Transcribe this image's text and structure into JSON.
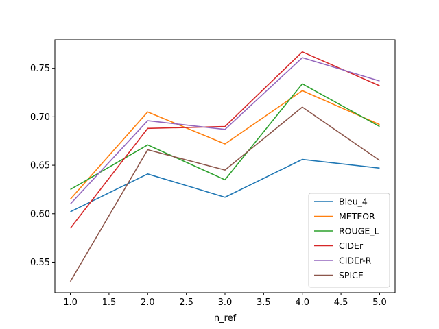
{
  "chart_data": {
    "type": "line",
    "title": "",
    "xlabel": "n_ref",
    "ylabel": "",
    "x": [
      1.0,
      2.0,
      3.0,
      4.0,
      5.0
    ],
    "xlim": [
      0.8,
      5.2
    ],
    "ylim": [
      0.5185,
      0.7795
    ],
    "xticks": [
      "1.0",
      "1.5",
      "2.0",
      "2.5",
      "3.0",
      "3.5",
      "4.0",
      "4.5",
      "5.0"
    ],
    "yticks": [
      "0.55",
      "0.60",
      "0.65",
      "0.70",
      "0.75"
    ],
    "grid": false,
    "legend_position": "lower-right",
    "series": [
      {
        "name": "Bleu_4",
        "color": "#1f77b4",
        "values": [
          0.602,
          0.641,
          0.617,
          0.656,
          0.647
        ]
      },
      {
        "name": "METEOR",
        "color": "#ff7f0e",
        "values": [
          0.615,
          0.705,
          0.672,
          0.727,
          0.692
        ]
      },
      {
        "name": "ROUGE_L",
        "color": "#2ca02c",
        "values": [
          0.625,
          0.671,
          0.635,
          0.734,
          0.69
        ]
      },
      {
        "name": "CIDEr",
        "color": "#d62728",
        "values": [
          0.585,
          0.688,
          0.69,
          0.767,
          0.732
        ]
      },
      {
        "name": "CIDEr-R",
        "color": "#9467bd",
        "values": [
          0.61,
          0.696,
          0.687,
          0.761,
          0.737
        ]
      },
      {
        "name": "SPICE",
        "color": "#8c564b",
        "values": [
          0.53,
          0.666,
          0.645,
          0.71,
          0.655
        ]
      }
    ]
  }
}
